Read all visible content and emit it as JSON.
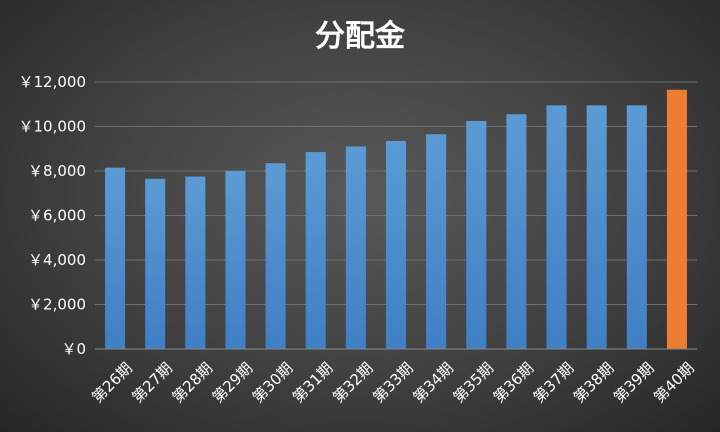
{
  "chart_data": {
    "type": "bar",
    "title": "分配金",
    "xlabel": "",
    "ylabel": "",
    "categories": [
      "第26期",
      "第27期",
      "第28期",
      "第29期",
      "第30期",
      "第31期",
      "第32期",
      "第33期",
      "第34期",
      "第35期",
      "第36期",
      "第37期",
      "第38期",
      "第39期",
      "第40期"
    ],
    "values": [
      8150,
      7650,
      7750,
      8000,
      8350,
      8850,
      9100,
      9350,
      9650,
      10250,
      10550,
      10950,
      10950,
      10950,
      11650
    ],
    "ylim": [
      0,
      12000
    ],
    "yticks": [
      0,
      2000,
      4000,
      6000,
      8000,
      10000,
      12000
    ],
    "ytick_labels": [
      "￥0",
      "￥2,000",
      "￥4,000",
      "￥6,000",
      "￥8,000",
      "￥10,000",
      "￥12,000"
    ],
    "grid": true,
    "legend": "none",
    "colors": {
      "bar": "#4a90d9",
      "highlight": "#ed7d31"
    },
    "highlight_index": 14
  }
}
